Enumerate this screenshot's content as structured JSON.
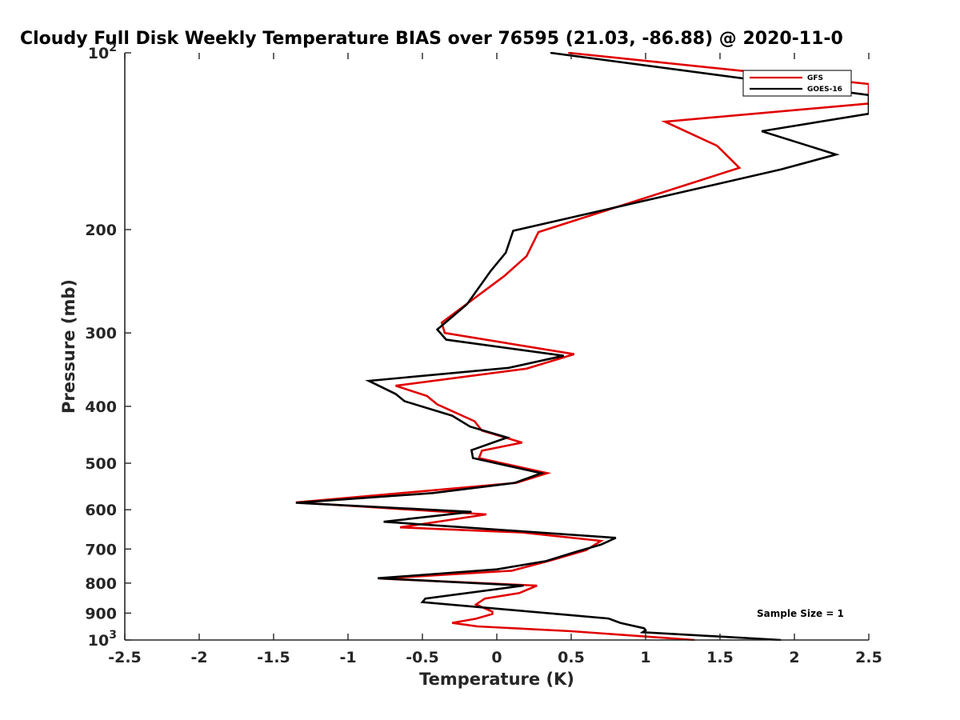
{
  "chart_data": {
    "type": "line",
    "title": "Cloudy Full Disk Weekly Temperature BIAS over 76595 (21.03, -86.88) @ 2020-11-0",
    "xlabel": "Temperature (K)",
    "ylabel": "Pressure (mb)",
    "xlim": [
      -2.5,
      2.5
    ],
    "ylim": [
      100,
      1000
    ],
    "y_scale": "log",
    "y_reversed": true,
    "grid": false,
    "legend_position": "top-right",
    "x_ticks": [
      "-2.5",
      "-2",
      "-1.5",
      "-1",
      "-0.5",
      "0",
      "0.5",
      "1",
      "1.5",
      "2",
      "2.5"
    ],
    "x_tick_values": [
      -2.5,
      -2,
      -1.5,
      -1,
      -0.5,
      0,
      0.5,
      1,
      1.5,
      2,
      2.5
    ],
    "y_ticks": [
      {
        "value": 100,
        "base": "10",
        "exp": "2"
      },
      {
        "value": 200,
        "label": "200"
      },
      {
        "value": 300,
        "label": "300"
      },
      {
        "value": 400,
        "label": "400"
      },
      {
        "value": 500,
        "label": "500"
      },
      {
        "value": 600,
        "label": "600"
      },
      {
        "value": 700,
        "label": "700"
      },
      {
        "value": 800,
        "label": "800"
      },
      {
        "value": 900,
        "label": "900"
      },
      {
        "value": 1000,
        "base": "10",
        "exp": "3"
      }
    ],
    "annotation": "Sample Size = 1",
    "series": [
      {
        "name": "GFS",
        "color": "#e00000",
        "points": [
          [
            0.48,
            100
          ],
          [
            2.5,
            113
          ],
          [
            2.5,
            122
          ],
          [
            1.13,
            131
          ],
          [
            1.48,
            144
          ],
          [
            1.63,
            157
          ],
          [
            0.28,
            202
          ],
          [
            0.2,
            222
          ],
          [
            0.05,
            240
          ],
          [
            -0.37,
            288
          ],
          [
            -0.35,
            300
          ],
          [
            0.52,
            326
          ],
          [
            0.2,
            345
          ],
          [
            -0.68,
            369
          ],
          [
            -0.47,
            384
          ],
          [
            -0.4,
            397
          ],
          [
            -0.15,
            424
          ],
          [
            -0.1,
            440
          ],
          [
            0.17,
            461
          ],
          [
            -0.1,
            476
          ],
          [
            -0.12,
            490
          ],
          [
            0.34,
            520
          ],
          [
            0.13,
            540
          ],
          [
            -1.35,
            583
          ],
          [
            -0.07,
            611
          ],
          [
            -0.65,
            643
          ],
          [
            0.17,
            656
          ],
          [
            0.7,
            678
          ],
          [
            0.6,
            703
          ],
          [
            0.37,
            731
          ],
          [
            0.1,
            762
          ],
          [
            -0.78,
            786
          ],
          [
            0.27,
            808
          ],
          [
            0.15,
            832
          ],
          [
            -0.08,
            850
          ],
          [
            -0.14,
            870
          ],
          [
            -0.03,
            895
          ],
          [
            -0.03,
            903
          ],
          [
            -0.14,
            920
          ],
          [
            -0.3,
            935
          ],
          [
            -0.13,
            948
          ],
          [
            0.5,
            966
          ],
          [
            1.33,
            1000
          ]
        ]
      },
      {
        "name": "GOES-16",
        "color": "#000000",
        "points": [
          [
            0.36,
            100
          ],
          [
            2.5,
            118
          ],
          [
            2.5,
            127
          ],
          [
            1.78,
            136
          ],
          [
            2.28,
            149
          ],
          [
            1.91,
            158
          ],
          [
            0.11,
            201
          ],
          [
            0.06,
            219
          ],
          [
            -0.04,
            235
          ],
          [
            -0.2,
            268
          ],
          [
            -0.4,
            296
          ],
          [
            -0.34,
            308
          ],
          [
            0.45,
            328
          ],
          [
            0.08,
            344
          ],
          [
            -0.86,
            362
          ],
          [
            -0.68,
            381
          ],
          [
            -0.62,
            392
          ],
          [
            -0.3,
            415
          ],
          [
            -0.18,
            433
          ],
          [
            0.07,
            452
          ],
          [
            -0.17,
            475
          ],
          [
            -0.16,
            490
          ],
          [
            0.3,
            520
          ],
          [
            0.12,
            540
          ],
          [
            -0.43,
            562
          ],
          [
            -1.35,
            584
          ],
          [
            -0.17,
            605
          ],
          [
            -0.76,
            629
          ],
          [
            0.8,
            670
          ],
          [
            0.7,
            688
          ],
          [
            0.53,
            708
          ],
          [
            0.33,
            734
          ],
          [
            0.0,
            758
          ],
          [
            -0.8,
            785
          ],
          [
            0.18,
            808
          ],
          [
            -0.48,
            850
          ],
          [
            -0.5,
            862
          ],
          [
            -0.01,
            884
          ],
          [
            0.45,
            905
          ],
          [
            0.75,
            919
          ],
          [
            0.83,
            935
          ],
          [
            0.99,
            955
          ],
          [
            1.0,
            962
          ],
          [
            0.98,
            970
          ],
          [
            1.91,
            1000
          ]
        ]
      }
    ]
  }
}
